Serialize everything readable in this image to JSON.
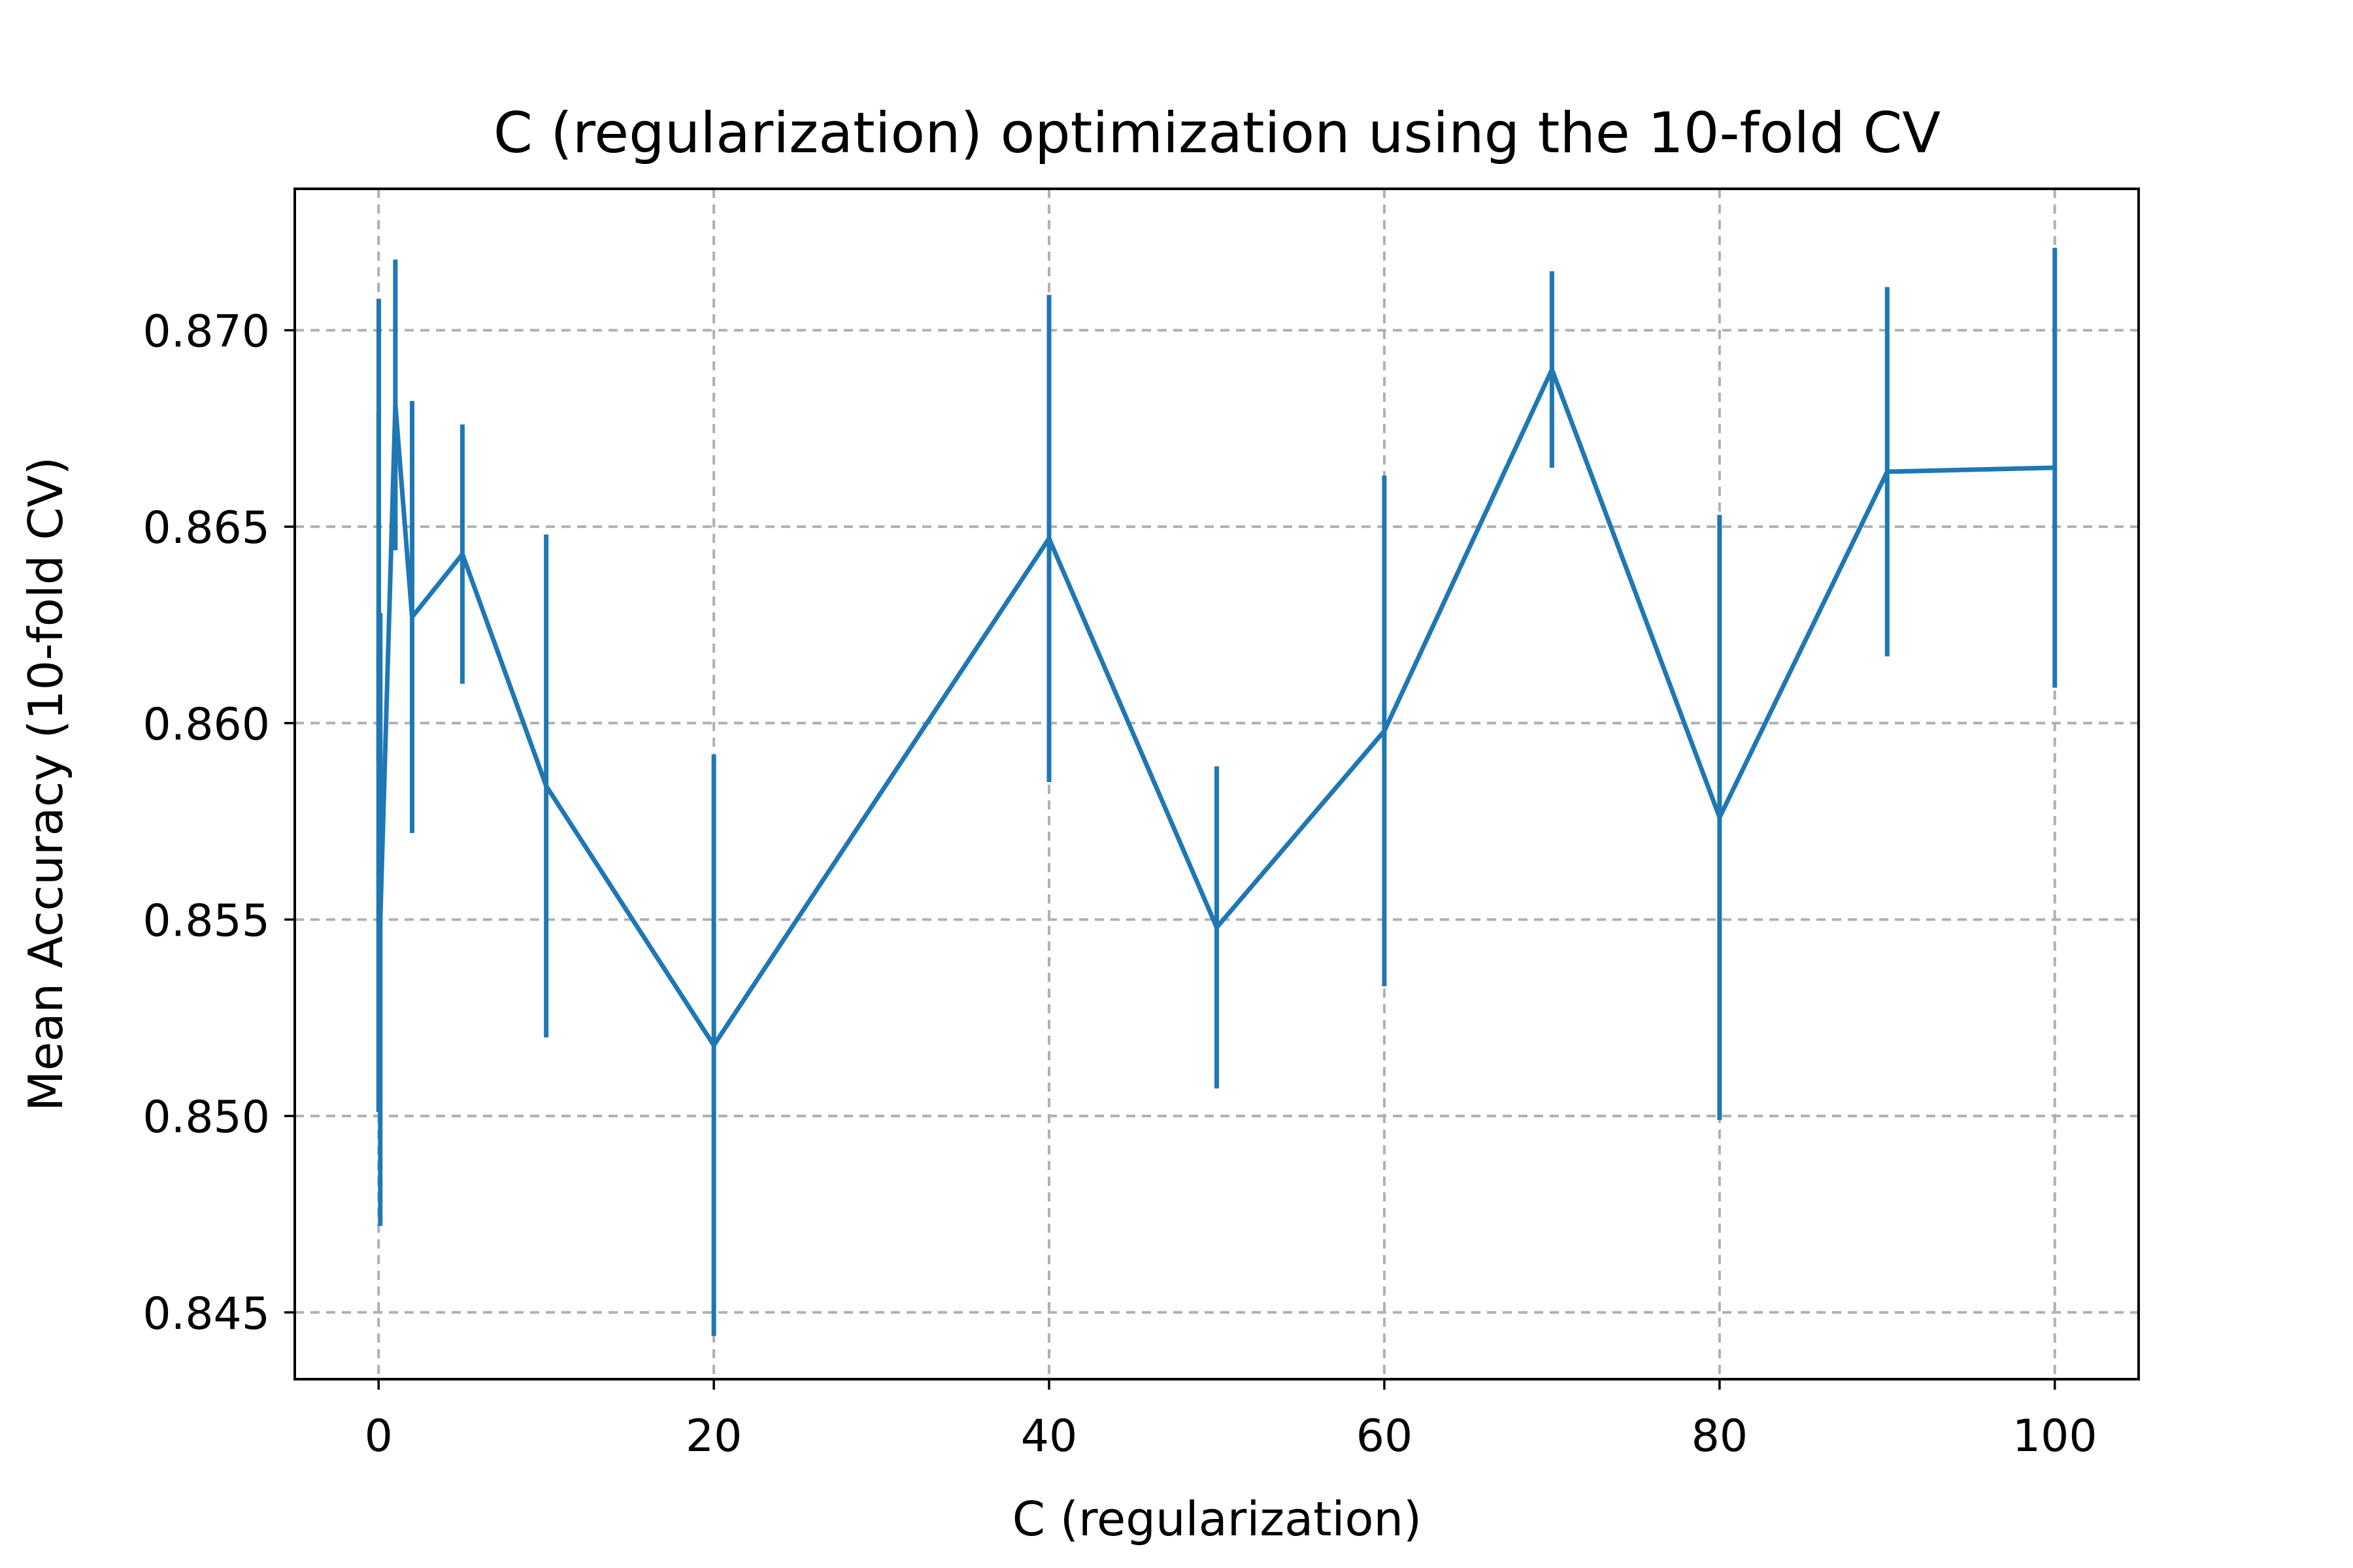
{
  "chart_data": {
    "type": "line",
    "title": "C (regularization) optimization using the 10-fold CV",
    "xlabel": "C (regularization)",
    "ylabel": "Mean Accuracy (10-fold CV)",
    "xlim": [
      -5,
      105
    ],
    "ylim": [
      0.8433,
      0.8736
    ],
    "xticks": [
      0,
      20,
      40,
      60,
      80,
      100
    ],
    "xtick_labels": [
      "0",
      "20",
      "40",
      "60",
      "80",
      "100"
    ],
    "yticks": [
      0.845,
      0.85,
      0.855,
      0.86,
      0.865,
      0.87
    ],
    "ytick_labels": [
      "0.845",
      "0.850",
      "0.855",
      "0.860",
      "0.865",
      "0.870"
    ],
    "grid": true,
    "series": [
      {
        "color": "#1f77b4",
        "error_bars": "vertical",
        "points": [
          {
            "x": 0.001,
            "y": 0.859,
            "yerr": 0.0089
          },
          {
            "x": 0.01,
            "y": 0.8625,
            "yerr": 0.0083
          },
          {
            "x": 0.1,
            "y": 0.855,
            "yerr": 0.0078
          },
          {
            "x": 1,
            "y": 0.8681,
            "yerr": 0.0037
          },
          {
            "x": 2,
            "y": 0.8627,
            "yerr": 0.0055
          },
          {
            "x": 5,
            "y": 0.8643,
            "yerr": 0.0033
          },
          {
            "x": 10,
            "y": 0.8584,
            "yerr": 0.0064
          },
          {
            "x": 20,
            "y": 0.8518,
            "yerr": 0.0074
          },
          {
            "x": 40,
            "y": 0.8647,
            "yerr": 0.0062
          },
          {
            "x": 50,
            "y": 0.8548,
            "yerr": 0.0041
          },
          {
            "x": 60,
            "y": 0.8598,
            "yerr": 0.0065
          },
          {
            "x": 70,
            "y": 0.869,
            "yerr": 0.0025
          },
          {
            "x": 80,
            "y": 0.8576,
            "yerr": 0.0077
          },
          {
            "x": 90,
            "y": 0.8664,
            "yerr": 0.0047
          },
          {
            "x": 100,
            "y": 0.8665,
            "yerr": 0.0056
          }
        ]
      }
    ]
  }
}
